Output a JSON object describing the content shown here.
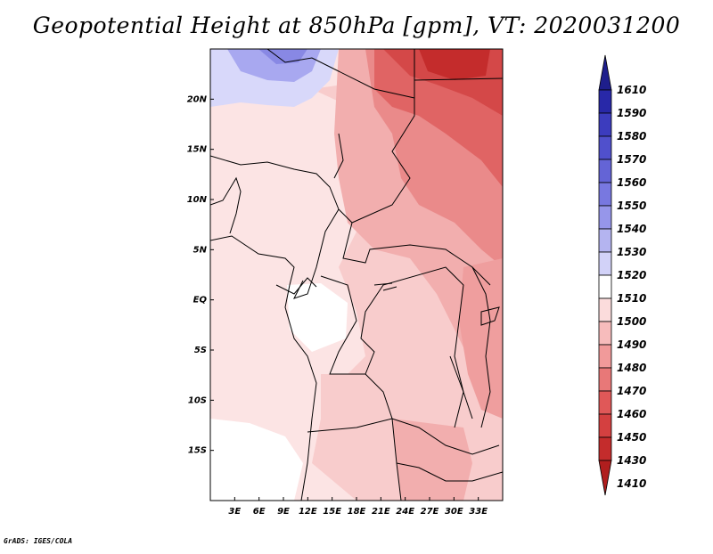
{
  "title": "Geopotential Height at 850hPa [gpm], VT: 2020031200",
  "footer": "GrADS: IGES/COLA",
  "map": {
    "lon_range": [
      0,
      36
    ],
    "lat_range": [
      -20,
      25
    ],
    "lat_ticks": [
      {
        "value": 20,
        "label": "20N"
      },
      {
        "value": 15,
        "label": "15N"
      },
      {
        "value": 10,
        "label": "10N"
      },
      {
        "value": 5,
        "label": "5N"
      },
      {
        "value": 0,
        "label": "EQ"
      },
      {
        "value": -5,
        "label": "5S"
      },
      {
        "value": -10,
        "label": "10S"
      },
      {
        "value": -15,
        "label": "15S"
      }
    ],
    "lon_ticks": [
      {
        "value": 3,
        "label": "3E"
      },
      {
        "value": 6,
        "label": "6E"
      },
      {
        "value": 9,
        "label": "9E"
      },
      {
        "value": 12,
        "label": "12E"
      },
      {
        "value": 15,
        "label": "15E"
      },
      {
        "value": 18,
        "label": "18E"
      },
      {
        "value": 21,
        "label": "21E"
      },
      {
        "value": 24,
        "label": "24E"
      },
      {
        "value": 27,
        "label": "27E"
      },
      {
        "value": 30,
        "label": "30E"
      },
      {
        "value": 33,
        "label": "33E"
      }
    ]
  },
  "colorbar": {
    "levels": [
      "1610",
      "1590",
      "1580",
      "1570",
      "1560",
      "1550",
      "1540",
      "1530",
      "1520",
      "1510",
      "1500",
      "1490",
      "1480",
      "1470",
      "1460",
      "1450",
      "1430",
      "1410"
    ],
    "colors": [
      "#1e1e8c",
      "#2828a8",
      "#3c3cbe",
      "#5050cc",
      "#6464d6",
      "#7878e0",
      "#9696ea",
      "#b4b4f0",
      "#d2d2f8",
      "#ffffff",
      "#fbdcdc",
      "#f7bcbc",
      "#f19a9a",
      "#e87878",
      "#e05858",
      "#d44040",
      "#c42c2c",
      "#b01e1e"
    ]
  },
  "regions_colors": {
    "white": "#ffffff",
    "lightest_red": "#fce4e4",
    "light_red": "#f8cccc",
    "mid_red": "#f2aeae",
    "red": "#ea8a8a",
    "deep_red": "#e06464",
    "dark_red": "#cc3a3a",
    "light_blue": "#d8d8fa",
    "blue": "#a8a8f0"
  }
}
